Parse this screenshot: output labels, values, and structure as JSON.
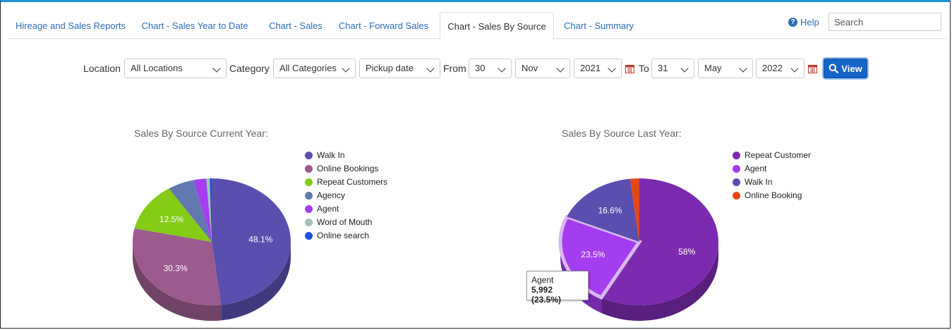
{
  "tabs": [
    {
      "label": "Hireage and Sales Reports"
    },
    {
      "label": "Chart - Sales Year to Date"
    },
    {
      "label": "Chart - Sales"
    },
    {
      "label": "Chart - Forward Sales"
    },
    {
      "label": "Chart - Sales By Source",
      "active": true
    },
    {
      "label": "Chart - Summary"
    }
  ],
  "header": {
    "help_label": "Help",
    "search_placeholder": "Search",
    "search_value": ""
  },
  "filters": {
    "location_label": "Location",
    "location_value": "All Locations",
    "category_label": "Category",
    "category_value": "All Categories",
    "date_type_value": "Pickup date",
    "from_label": "From",
    "from_day": "30",
    "from_month": "Nov",
    "from_year": "2021",
    "to_label": "To",
    "to_day": "31",
    "to_month": "May",
    "to_year": "2022",
    "view_label": "View"
  },
  "colors": {
    "accent": "#1565c8",
    "link": "#2a6db3"
  },
  "chart_data": [
    {
      "type": "pie",
      "title": "Sales By Source Current Year:",
      "series": [
        {
          "name": "Walk In",
          "value": 48.1,
          "label": "48.1%",
          "color": "#5a4fae"
        },
        {
          "name": "Online Bookings",
          "value": 30.3,
          "label": "30.3%",
          "color": "#9b5b8e"
        },
        {
          "name": "Repeat Customers",
          "value": 12.5,
          "label": "12.5%",
          "color": "#84cc16"
        },
        {
          "name": "Agency",
          "value": 5.4,
          "label": "",
          "color": "#6278b0"
        },
        {
          "name": "Agent",
          "value": 2.6,
          "label": "",
          "color": "#a43cf0"
        },
        {
          "name": "Word of Mouth",
          "value": 0.7,
          "label": "",
          "color": "#a6c2b4"
        },
        {
          "name": "Online search",
          "value": 0.4,
          "label": "",
          "color": "#1d4fd8"
        }
      ],
      "legend_position": "right"
    },
    {
      "type": "pie",
      "title": "Sales By Source Last Year:",
      "series": [
        {
          "name": "Repeat Customer",
          "value": 58,
          "label": "58%",
          "color": "#7c2bb0"
        },
        {
          "name": "Agent",
          "value": 23.5,
          "label": "23.5%",
          "color": "#a43cf0"
        },
        {
          "name": "Walk In",
          "value": 16.6,
          "label": "16.6%",
          "color": "#5a4fae"
        },
        {
          "name": "Online Booking",
          "value": 1.9,
          "label": "",
          "color": "#e4471a"
        }
      ],
      "legend_position": "right",
      "tooltip": {
        "name": "Agent",
        "value": "5,992 (23.5%)"
      }
    }
  ]
}
